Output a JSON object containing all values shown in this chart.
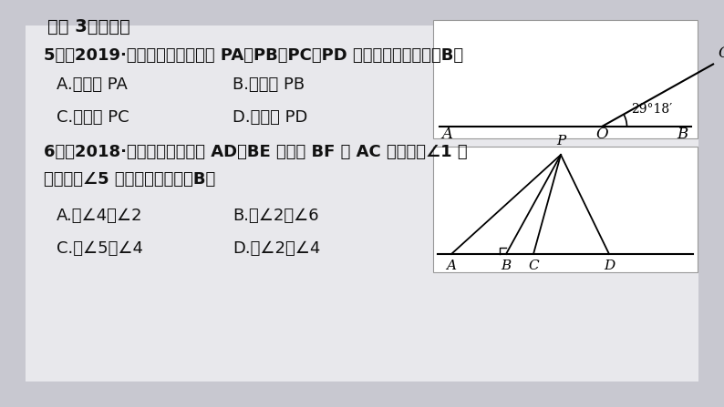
{
  "bg_color": "#c8c8d0",
  "panel_color": "#e8e8ec",
  "text_color": "#1a1a1a",
  "title": "考点 3　相交线",
  "q5_text": "5．（2019·常州）如图，在线段 PA，PB，PC，PD 中，长度最小的是（B）",
  "q5_A": "A.　线段 PA",
  "q5_B": "B.　线段 PB",
  "q5_C": "C.　线段 PC",
  "q5_D": "D.　线段 PD",
  "q6_text": "6．（2018·广州）如图，直线 AD，BE 被直线 BF 和 AC 所截，则∠1 的",
  "q6_text2": "同位角和∠5 的内错角分别是（B）",
  "q6_A": "A.　∠4，∠2",
  "q6_B": "B.　∠2，∠6",
  "q6_C": "C.　∠5，∠4",
  "q6_D": "D.　∠2，∠4",
  "fig1_angle_label": "29°18′",
  "fig1_labels": [
    "A",
    "O",
    "B",
    "C"
  ],
  "fig2_labels": [
    "A",
    "B",
    "C",
    "D",
    "P"
  ]
}
